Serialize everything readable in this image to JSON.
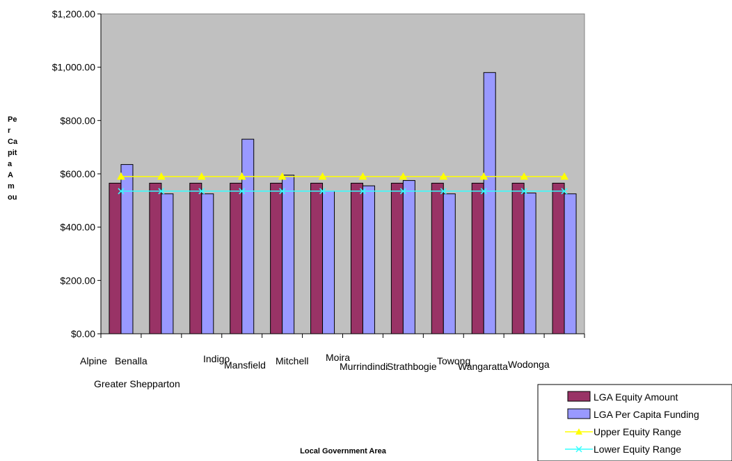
{
  "chart_data": {
    "type": "bar",
    "title": "",
    "xlabel": "Local Government Area",
    "ylabel": "Per Capita Amou",
    "ylim": [
      0,
      1200
    ],
    "y_ticks": [
      "$0.00",
      "$200.00",
      "$400.00",
      "$600.00",
      "$800.00",
      "$1,000.00",
      "$1,200.00"
    ],
    "categories": [
      "Alpine",
      "Benalla",
      "Greater Shepparton",
      "Indigo",
      "Mansfield",
      "Mitchell",
      "Moira",
      "Murrindindi",
      "Strathbogie",
      "Towong",
      "Wangaratta",
      "Wodonga"
    ],
    "series": [
      {
        "name": "LGA Equity Amount",
        "kind": "bar",
        "color": "#993366",
        "values": [
          565,
          565,
          565,
          565,
          565,
          565,
          565,
          565,
          565,
          565,
          565,
          565
        ]
      },
      {
        "name": "LGA Per Capita Funding",
        "kind": "bar",
        "color": "#9999FF",
        "values": [
          635,
          525,
          525,
          730,
          595,
          535,
          555,
          575,
          525,
          980,
          528,
          525
        ]
      },
      {
        "name": "Upper Equity Range",
        "kind": "line",
        "color": "#FFFF00",
        "marker": "triangle",
        "values": [
          590,
          590,
          590,
          590,
          590,
          590,
          590,
          590,
          590,
          590,
          590,
          590
        ]
      },
      {
        "name": "Lower Equity Range",
        "kind": "line",
        "color": "#33FFFF",
        "marker": "x",
        "values": [
          535,
          535,
          535,
          535,
          535,
          535,
          535,
          535,
          535,
          535,
          535,
          535
        ]
      }
    ],
    "grid": false,
    "plot_background": "#C0C0C0",
    "legend_position": "bottom-right"
  }
}
